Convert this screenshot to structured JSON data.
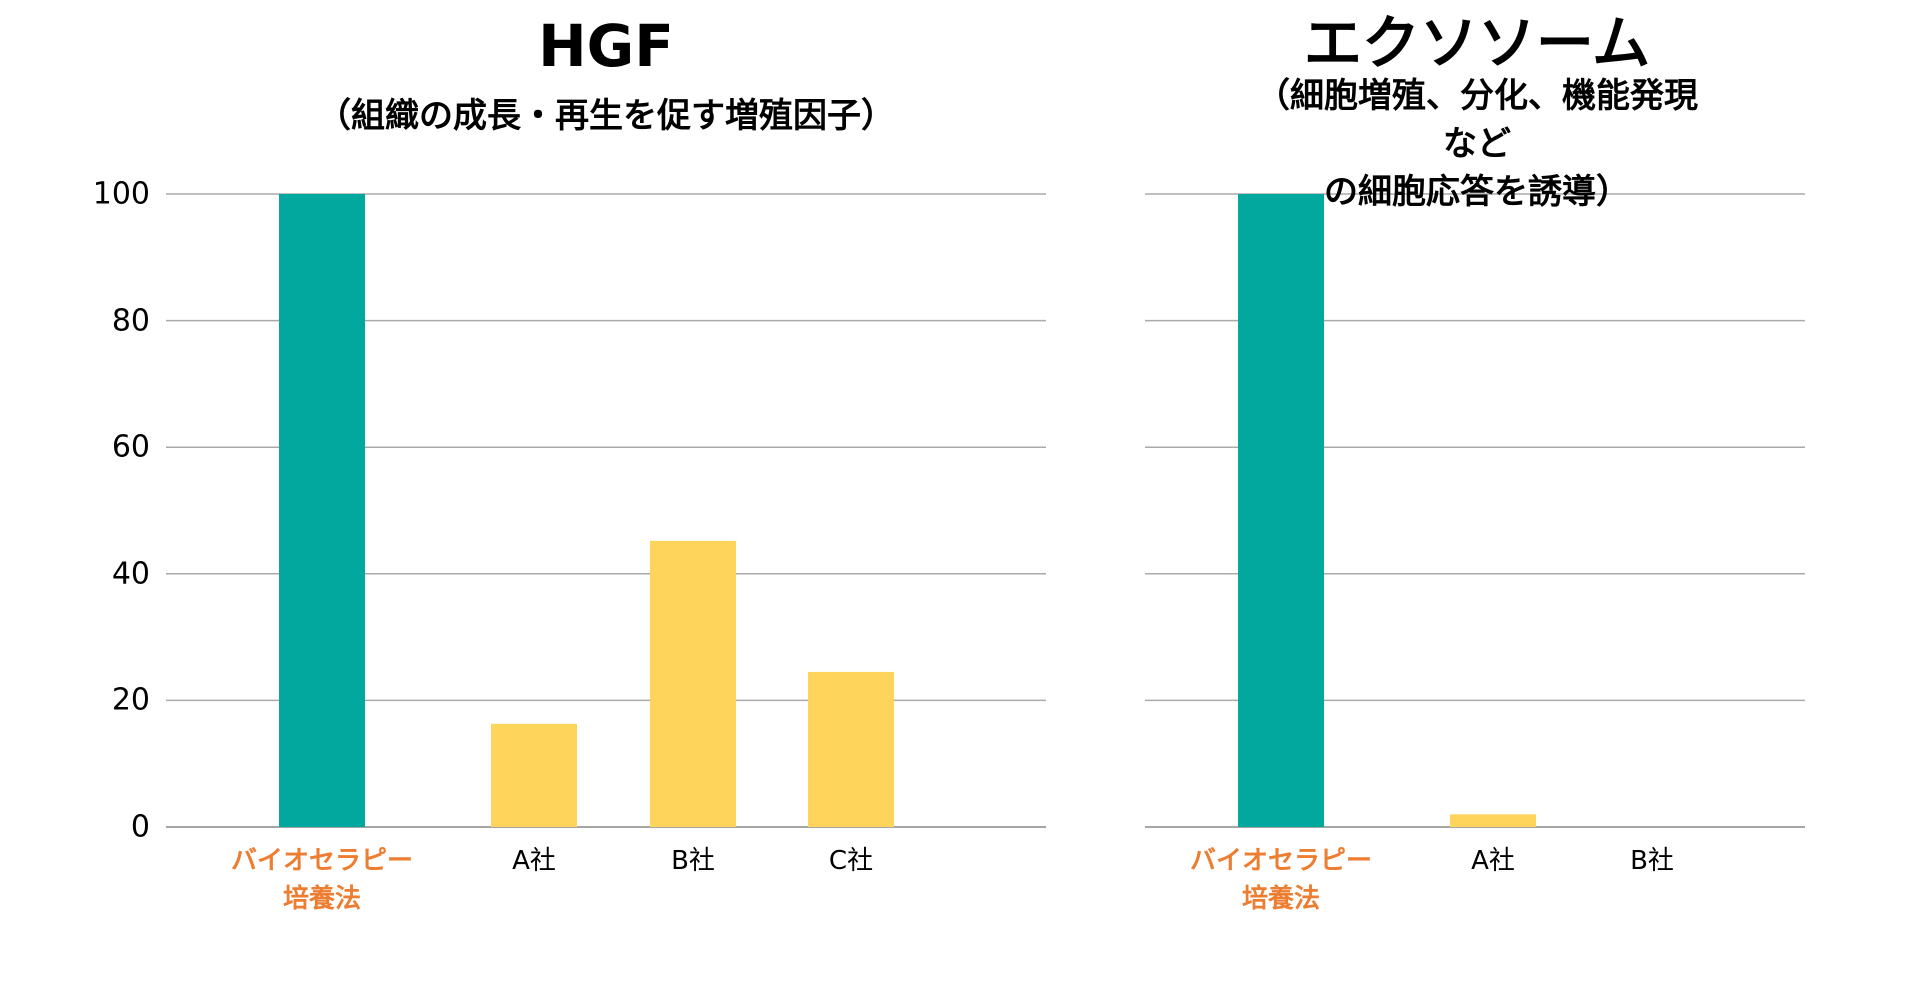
{
  "chart_data": [
    {
      "type": "bar",
      "title": "HGF",
      "subtitle": "（組織の成長・再生を促す増殖因子）",
      "categories": [
        "バイオセラピー\n培養法",
        "A社",
        "B社",
        "C社"
      ],
      "values": [
        100,
        16.3,
        45.2,
        24.5
      ],
      "colors": [
        "#02a89e",
        "#fed45a",
        "#fed45a",
        "#fed45a"
      ],
      "label_colors": [
        "#ed7d31",
        "#000000",
        "#000000",
        "#000000"
      ],
      "ylim": [
        0,
        100
      ],
      "yticks": [
        0,
        20,
        40,
        60,
        80,
        100
      ],
      "ytick_labels": true,
      "grid": true
    },
    {
      "type": "bar",
      "title": "エクソソーム",
      "subtitle": "（細胞増殖、分化、機能発現など\nの細胞応答を誘導）",
      "categories": [
        "バイオセラピー\n培養法",
        "A社",
        "B社"
      ],
      "values": [
        100,
        2,
        0
      ],
      "colors": [
        "#02a89e",
        "#fed45a",
        "#fed45a"
      ],
      "label_colors": [
        "#ed7d31",
        "#000000",
        "#000000"
      ],
      "ylim": [
        0,
        100
      ],
      "yticks": [
        0,
        20,
        40,
        60,
        80,
        100
      ],
      "ytick_labels": false,
      "grid": true
    }
  ]
}
